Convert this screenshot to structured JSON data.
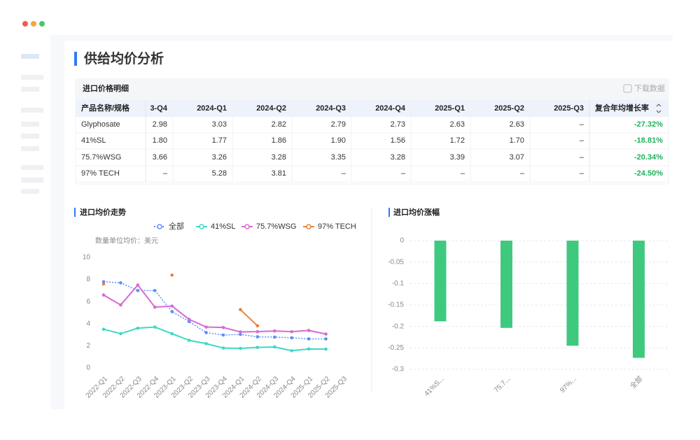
{
  "header": {
    "title": "供给均价分析"
  },
  "table": {
    "title": "进口价格明细",
    "download": "下载数据",
    "columns": [
      "产品名称/规格",
      "3-Q4",
      "2024-Q1",
      "2024-Q2",
      "2024-Q3",
      "2024-Q4",
      "2025-Q1",
      "2025-Q2",
      "2025-Q3",
      "复合年均增长率"
    ],
    "rows": [
      [
        "Glyphosate",
        "2.98",
        "3.03",
        "2.82",
        "2.79",
        "2.73",
        "2.63",
        "2.63",
        "–",
        "-27.32%"
      ],
      [
        "41%SL",
        "1.80",
        "1.77",
        "1.86",
        "1.90",
        "1.56",
        "1.72",
        "1.70",
        "–",
        "-18.81%"
      ],
      [
        "75.7%WSG",
        "3.66",
        "3.26",
        "3.28",
        "3.35",
        "3.28",
        "3.39",
        "3.07",
        "–",
        "-20.34%"
      ],
      [
        "97% TECH",
        "–",
        "5.28",
        "3.81",
        "–",
        "–",
        "–",
        "–",
        "–",
        "-24.50%"
      ]
    ]
  },
  "chart_data": [
    {
      "type": "line",
      "title": "进口均价走势",
      "subtitle": "数量单位均价：美元",
      "categories": [
        "2022-Q1",
        "2022-Q2",
        "2022-Q3",
        "2022-Q4",
        "2023-Q1",
        "2023-Q2",
        "2023-Q3",
        "2023-Q4",
        "2024-Q1",
        "2024-Q2",
        "2024-Q3",
        "2024-Q4",
        "2025-Q1",
        "2025-Q2",
        "2025-Q3"
      ],
      "ylim": [
        0,
        10
      ],
      "yticks": [
        0,
        2,
        4,
        6,
        8,
        10
      ],
      "grid": false,
      "series": [
        {
          "name": "全部",
          "color": "#5b8ff9",
          "style": "dotted",
          "values": [
            7.8,
            7.7,
            7.0,
            7.0,
            5.1,
            4.2,
            3.2,
            2.98,
            3.03,
            2.82,
            2.79,
            2.73,
            2.63,
            2.63,
            null
          ]
        },
        {
          "name": "41%SL",
          "color": "#3fd8c4",
          "style": "solid",
          "values": [
            3.5,
            3.1,
            3.6,
            3.7,
            3.1,
            2.5,
            2.2,
            1.8,
            1.77,
            1.86,
            1.9,
            1.56,
            1.72,
            1.7,
            null
          ]
        },
        {
          "name": "75.7%WSG",
          "color": "#d66bd3",
          "style": "solid",
          "values": [
            6.6,
            5.7,
            7.5,
            5.5,
            5.6,
            4.4,
            3.7,
            3.66,
            3.26,
            3.28,
            3.35,
            3.28,
            3.39,
            3.07,
            null
          ]
        },
        {
          "name": "97% TECH",
          "color": "#e8823c",
          "style": "solid",
          "values": [
            7.6,
            null,
            null,
            null,
            8.4,
            null,
            null,
            null,
            5.28,
            3.81,
            null,
            null,
            null,
            null,
            null
          ]
        }
      ]
    },
    {
      "type": "bar",
      "title": "进口均价涨幅",
      "categories": [
        "41%S...",
        "75.7...",
        "97%...",
        "全部"
      ],
      "values": [
        -0.1881,
        -0.2034,
        -0.245,
        -0.2732
      ],
      "color": "#3fc97f",
      "ylim": [
        -0.3,
        0
      ],
      "yticks": [
        0,
        -0.05,
        -0.1,
        -0.15,
        -0.2,
        -0.25,
        -0.3
      ],
      "grid": true
    }
  ]
}
